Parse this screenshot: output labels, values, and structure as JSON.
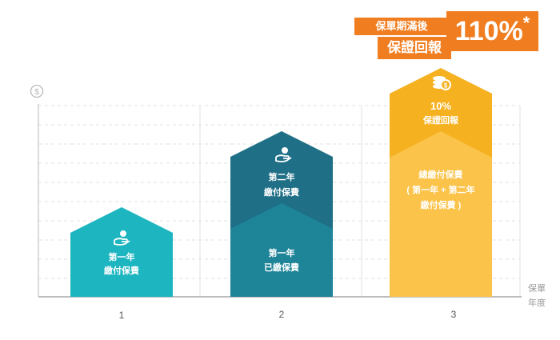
{
  "chart_data": {
    "type": "bar",
    "categories": [
      "1",
      "2",
      "3"
    ],
    "series": [
      {
        "name": "第一年 繳付保費",
        "values": [
          1,
          0,
          0
        ]
      },
      {
        "name": "第一年 已繳保費",
        "values": [
          0,
          1,
          0
        ]
      },
      {
        "name": "第二年 繳付保費",
        "values": [
          0,
          1,
          0
        ]
      },
      {
        "name": "總繳付保費（第一年 + 第二年 繳付保費）",
        "values": [
          0,
          0,
          2
        ]
      },
      {
        "name": "10% 保證回報",
        "values": [
          0,
          0,
          0.2
        ]
      }
    ],
    "ylabel_icon": "dollar-coin-icon",
    "xlabel": "保單 年度",
    "grid": true,
    "colors": {
      "teal": "#1cb5c0",
      "dark_teal": "#1f6f87",
      "mid_teal": "#1e8498",
      "yellow_light": "#fbc349",
      "yellow": "#f5b120",
      "orange": "#f07d1f"
    }
  },
  "labels": {
    "bar1_line1": "第一年",
    "bar1_line2": "繳付保費",
    "bar2_top_line1": "第二年",
    "bar2_top_line2": "繳付保費",
    "bar2_bottom_line1": "第一年",
    "bar2_bottom_line2": "已繳保費",
    "bar3_top_line1": "10%",
    "bar3_top_line2": "保證回報",
    "bar3_bottom_line1": "總繳付保費",
    "bar3_bottom_line2": "( 第一年 + 第二年",
    "bar3_bottom_line3": "繳付保費 )",
    "axis_title_line1": "保單",
    "axis_title_line2": "年度",
    "y_symbol": "$"
  },
  "banner": {
    "top": "保單期滿後",
    "bottom": "保證回報",
    "value": "110%",
    "star": "*"
  }
}
